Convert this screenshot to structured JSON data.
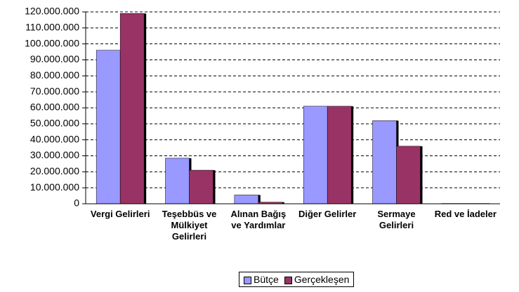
{
  "chart_data": {
    "type": "bar",
    "categories": [
      "Vergi Gelirleri",
      "Teşebbüs ve Mülkiyet Gelirleri",
      "Alınan Bağış ve Yardımlar",
      "Diğer Gelirler",
      "Sermaye Gelirleri",
      "Red ve İadeler"
    ],
    "series": [
      {
        "name": "Bütçe",
        "color": "#9999ff",
        "values": [
          96000000,
          28500000,
          5500000,
          61000000,
          52000000,
          200000
        ]
      },
      {
        "name": "Gerçekleşen",
        "color": "#993366",
        "values": [
          119000000,
          21000000,
          1000000,
          61000000,
          36000000,
          200000
        ]
      }
    ],
    "ylim": [
      0,
      120000000
    ],
    "yticks": [
      0,
      {
        "value": 10000000,
        "label": "10.000.000"
      },
      {
        "value": 20000000,
        "label": "20.000.000"
      },
      {
        "value": 30000000,
        "label": "30.000.000"
      },
      {
        "value": 40000000,
        "label": "40.000.000"
      },
      {
        "value": 50000000,
        "label": "50.000.000"
      },
      {
        "value": 60000000,
        "label": "60.000.000"
      },
      {
        "value": 70000000,
        "label": "70.000.000"
      },
      {
        "value": 80000000,
        "label": "80.000.000"
      },
      {
        "value": 90000000,
        "label": "90.000.000"
      },
      {
        "value": 100000000,
        "label": "100.000.000"
      },
      {
        "value": 110000000,
        "label": "110.000.000"
      },
      {
        "value": 120000000,
        "label": "120.000.000"
      }
    ],
    "grid": true
  }
}
